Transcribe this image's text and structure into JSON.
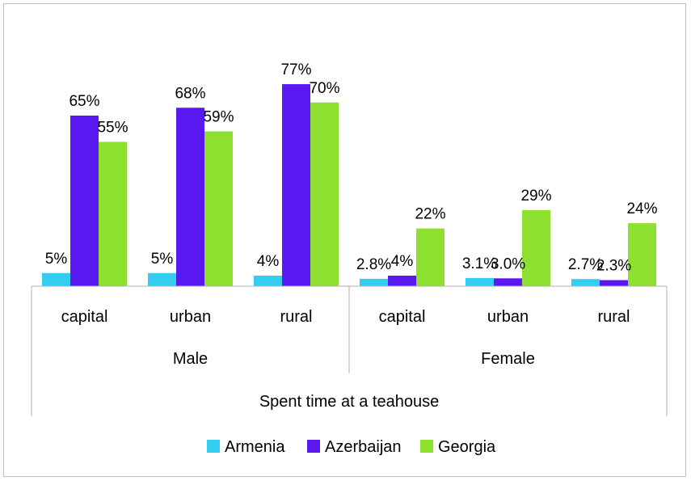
{
  "chart_data": {
    "type": "bar",
    "title": "",
    "categories": [
      "capital",
      "urban",
      "rural",
      "capital",
      "urban",
      "rural"
    ],
    "groups": [
      {
        "label": "Male",
        "category_indices": [
          0,
          1,
          2
        ]
      },
      {
        "label": "Female",
        "category_indices": [
          3,
          4,
          5
        ]
      }
    ],
    "xlabel": "Spent time at a teahouse",
    "ylabel": "",
    "ylim": [
      0,
      80
    ],
    "grid": false,
    "legend_position": "bottom",
    "series": [
      {
        "name": "Armenia",
        "color": "#33ccf2",
        "values": [
          5,
          5,
          4,
          2.8,
          3.1,
          2.7
        ],
        "labels": [
          "5%",
          "5%",
          "4%",
          "2.8%",
          "3.1%",
          "2.7%"
        ]
      },
      {
        "name": "Azerbaijan",
        "color": "#5a18f0",
        "values": [
          65,
          68,
          77,
          4,
          3.0,
          2.3
        ],
        "labels": [
          "65%",
          "68%",
          "77%",
          "4%",
          "3.0%",
          "2.3%"
        ]
      },
      {
        "name": "Georgia",
        "color": "#8ee030",
        "values": [
          55,
          59,
          70,
          22,
          29,
          24
        ],
        "labels": [
          "55%",
          "59%",
          "70%",
          "22%",
          "29%",
          "24%"
        ]
      }
    ]
  }
}
